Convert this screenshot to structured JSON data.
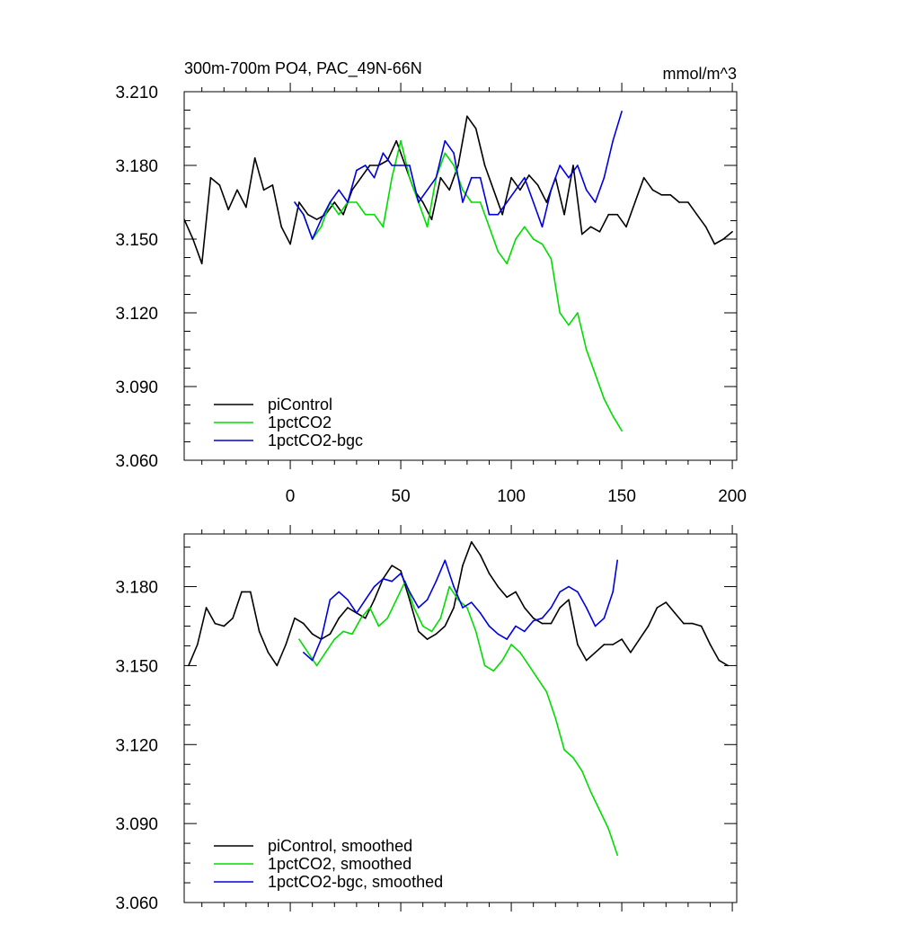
{
  "chart_data": [
    {
      "type": "line",
      "title": "300m-700m PO4, PAC_49N-66N",
      "units": "mmol/m^3",
      "xlim": [
        -48,
        202
      ],
      "ylim": [
        3.06,
        3.21
      ],
      "xticks": [
        0,
        50,
        100,
        150,
        200
      ],
      "yticks": [
        "3.060",
        "3.090",
        "3.120",
        "3.150",
        "3.180",
        "3.210"
      ],
      "legend_position": "bottom-left",
      "series": [
        {
          "name": "piControl",
          "color": "#000000",
          "x": [
            -48,
            -44,
            -40,
            -36,
            -32,
            -28,
            -24,
            -20,
            -16,
            -12,
            -8,
            -4,
            0,
            4,
            8,
            12,
            16,
            20,
            24,
            28,
            32,
            36,
            40,
            44,
            48,
            52,
            56,
            60,
            64,
            68,
            72,
            76,
            80,
            84,
            88,
            92,
            96,
            100,
            104,
            108,
            112,
            116,
            120,
            124,
            128,
            132,
            136,
            140,
            144,
            148,
            152,
            156,
            160,
            164,
            168,
            172,
            176,
            180,
            184,
            188,
            192,
            196,
            200
          ],
          "y": [
            3.158,
            3.15,
            3.14,
            3.175,
            3.172,
            3.162,
            3.17,
            3.163,
            3.183,
            3.17,
            3.172,
            3.155,
            3.148,
            3.165,
            3.16,
            3.158,
            3.16,
            3.165,
            3.16,
            3.17,
            3.175,
            3.18,
            3.18,
            3.182,
            3.19,
            3.18,
            3.17,
            3.165,
            3.158,
            3.175,
            3.17,
            3.18,
            3.2,
            3.195,
            3.18,
            3.17,
            3.16,
            3.175,
            3.17,
            3.176,
            3.172,
            3.165,
            3.175,
            3.16,
            3.18,
            3.152,
            3.155,
            3.153,
            3.16,
            3.16,
            3.155,
            3.165,
            3.175,
            3.17,
            3.168,
            3.168,
            3.165,
            3.165,
            3.16,
            3.155,
            3.148,
            3.15,
            3.153
          ]
        },
        {
          "name": "1pctCO2",
          "color": "#00dd00",
          "x": [
            2,
            6,
            10,
            14,
            18,
            22,
            26,
            30,
            34,
            38,
            42,
            46,
            50,
            54,
            58,
            62,
            66,
            70,
            74,
            78,
            82,
            86,
            90,
            94,
            98,
            102,
            106,
            110,
            114,
            118,
            122,
            126,
            130,
            134,
            138,
            142,
            146,
            150
          ],
          "y": [
            3.165,
            3.16,
            3.15,
            3.155,
            3.165,
            3.16,
            3.165,
            3.165,
            3.16,
            3.16,
            3.155,
            3.175,
            3.19,
            3.175,
            3.165,
            3.155,
            3.175,
            3.185,
            3.18,
            3.17,
            3.165,
            3.165,
            3.155,
            3.145,
            3.14,
            3.15,
            3.155,
            3.15,
            3.148,
            3.142,
            3.12,
            3.115,
            3.12,
            3.105,
            3.095,
            3.085,
            3.078,
            3.072
          ]
        },
        {
          "name": "1pctCO2-bgc",
          "color": "#0000dd",
          "x": [
            2,
            6,
            10,
            14,
            18,
            22,
            26,
            30,
            34,
            38,
            42,
            46,
            50,
            54,
            58,
            62,
            66,
            70,
            74,
            78,
            82,
            86,
            90,
            94,
            98,
            102,
            106,
            110,
            114,
            118,
            122,
            126,
            130,
            134,
            138,
            142,
            146,
            150
          ],
          "y": [
            3.165,
            3.16,
            3.15,
            3.158,
            3.165,
            3.17,
            3.165,
            3.178,
            3.18,
            3.175,
            3.185,
            3.18,
            3.18,
            3.18,
            3.165,
            3.17,
            3.175,
            3.19,
            3.185,
            3.165,
            3.175,
            3.175,
            3.16,
            3.16,
            3.165,
            3.17,
            3.175,
            3.165,
            3.155,
            3.17,
            3.18,
            3.175,
            3.18,
            3.17,
            3.165,
            3.175,
            3.19,
            3.202
          ]
        }
      ]
    },
    {
      "type": "line",
      "xlim": [
        -48,
        202
      ],
      "ylim": [
        3.06,
        3.2
      ],
      "xticks": [
        0,
        50,
        100,
        150,
        200
      ],
      "yticks": [
        "3.060",
        "3.090",
        "3.120",
        "3.150",
        "3.180"
      ],
      "legend_position": "bottom-left",
      "series": [
        {
          "name": "piControl, smoothed",
          "color": "#000000",
          "x": [
            -46,
            -42,
            -38,
            -34,
            -30,
            -26,
            -22,
            -18,
            -14,
            -10,
            -6,
            -2,
            2,
            6,
            10,
            14,
            18,
            22,
            26,
            30,
            34,
            38,
            42,
            46,
            50,
            54,
            58,
            62,
            66,
            70,
            74,
            78,
            82,
            86,
            90,
            94,
            98,
            102,
            106,
            110,
            114,
            118,
            122,
            126,
            130,
            134,
            138,
            142,
            146,
            150,
            154,
            158,
            162,
            166,
            170,
            174,
            178,
            182,
            186,
            190,
            194,
            198
          ],
          "y": [
            3.15,
            3.158,
            3.172,
            3.166,
            3.165,
            3.168,
            3.178,
            3.178,
            3.163,
            3.155,
            3.15,
            3.158,
            3.168,
            3.166,
            3.162,
            3.16,
            3.162,
            3.168,
            3.172,
            3.17,
            3.168,
            3.175,
            3.183,
            3.188,
            3.186,
            3.175,
            3.163,
            3.16,
            3.162,
            3.165,
            3.172,
            3.188,
            3.197,
            3.192,
            3.185,
            3.18,
            3.176,
            3.178,
            3.172,
            3.168,
            3.166,
            3.166,
            3.172,
            3.175,
            3.158,
            3.152,
            3.155,
            3.158,
            3.158,
            3.16,
            3.155,
            3.16,
            3.165,
            3.172,
            3.174,
            3.17,
            3.166,
            3.166,
            3.165,
            3.158,
            3.152,
            3.15
          ]
        },
        {
          "name": "1pctCO2, smoothed",
          "color": "#00dd00",
          "x": [
            4,
            8,
            12,
            16,
            20,
            24,
            28,
            32,
            36,
            40,
            44,
            48,
            52,
            56,
            60,
            64,
            68,
            72,
            76,
            80,
            84,
            88,
            92,
            96,
            100,
            104,
            108,
            112,
            116,
            120,
            124,
            128,
            132,
            136,
            140,
            144,
            148
          ],
          "y": [
            3.16,
            3.155,
            3.15,
            3.155,
            3.16,
            3.163,
            3.162,
            3.168,
            3.172,
            3.165,
            3.168,
            3.175,
            3.182,
            3.172,
            3.165,
            3.163,
            3.168,
            3.18,
            3.175,
            3.172,
            3.163,
            3.15,
            3.148,
            3.152,
            3.158,
            3.155,
            3.15,
            3.145,
            3.14,
            3.13,
            3.118,
            3.115,
            3.11,
            3.102,
            3.095,
            3.088,
            3.078
          ]
        },
        {
          "name": "1pctCO2-bgc, smoothed",
          "color": "#0000dd",
          "x": [
            6,
            10,
            14,
            18,
            22,
            26,
            30,
            34,
            38,
            42,
            46,
            50,
            54,
            58,
            62,
            66,
            70,
            74,
            78,
            82,
            86,
            90,
            94,
            98,
            102,
            106,
            110,
            114,
            118,
            122,
            126,
            130,
            134,
            138,
            142,
            146,
            148
          ],
          "y": [
            3.155,
            3.152,
            3.16,
            3.175,
            3.178,
            3.175,
            3.17,
            3.175,
            3.18,
            3.183,
            3.182,
            3.185,
            3.178,
            3.172,
            3.175,
            3.182,
            3.19,
            3.18,
            3.172,
            3.174,
            3.17,
            3.165,
            3.162,
            3.16,
            3.165,
            3.163,
            3.167,
            3.168,
            3.172,
            3.178,
            3.18,
            3.178,
            3.172,
            3.165,
            3.168,
            3.178,
            3.19
          ]
        }
      ]
    }
  ]
}
